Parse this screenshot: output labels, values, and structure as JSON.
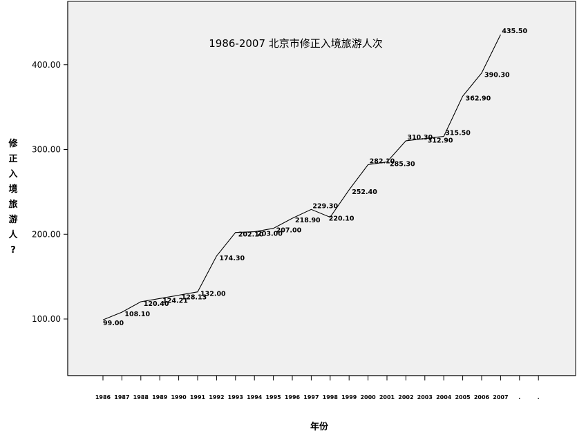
{
  "chart_data": {
    "type": "line",
    "title": "1986-2007 北京市修正入境旅游人次",
    "xlabel": "年份",
    "ylabel": "修正入境旅游人?",
    "categories": [
      "1986",
      "1987",
      "1988",
      "1989",
      "1990",
      "1991",
      "1992",
      "1993",
      "1994",
      "1995",
      "1996",
      "1997",
      "1998",
      "1999",
      "2000",
      "2001",
      "2002",
      "2003",
      "2004",
      "2005",
      "2006",
      "2007",
      ".",
      "."
    ],
    "series": [
      {
        "values": [
          99.0,
          108.1,
          120.4,
          124.21,
          128.13,
          132.0,
          174.3,
          202.1,
          203.0,
          207.0,
          218.9,
          229.3,
          220.1,
          252.4,
          282.1,
          285.3,
          310.3,
          312.9,
          315.5,
          362.9,
          390.3,
          435.5,
          null,
          null
        ],
        "labels": [
          "99.00",
          "108.10",
          "120.40",
          "124.21",
          "128.13",
          "132.00",
          "174.30",
          "202.10",
          "203.00",
          "207.00",
          "218.90",
          "229.30",
          "220.10",
          "252.40",
          "282.10",
          "285.30",
          "310.30",
          "312.90",
          "315.50",
          "362.90",
          "390.30",
          "435.50",
          "",
          ""
        ]
      }
    ],
    "yticks": [
      "100.00",
      "200.00",
      "300.00",
      "400.00"
    ],
    "grid": false,
    "legend": "none"
  }
}
